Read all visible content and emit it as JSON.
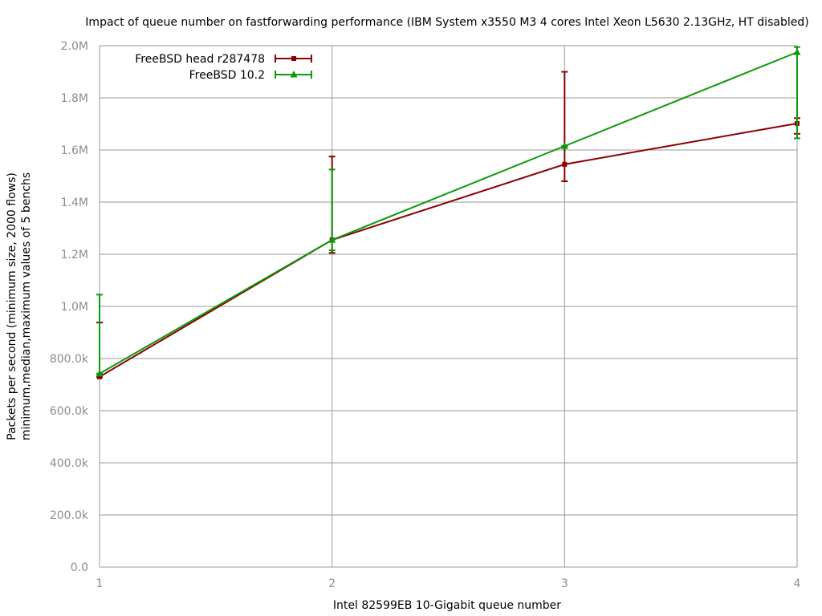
{
  "chart_data": {
    "type": "line",
    "title": "Impact of queue number on fastforwarding performance (IBM System x3550 M3 4 cores Intel Xeon L5630 2.13GHz, HT disabled)",
    "xlabel": "Intel 82599EB 10-Gigabit queue number",
    "ylabel": [
      "Packets per second (minimum size, 2000 flows)",
      "minimum,median,maximum values of 5 benchs"
    ],
    "x": [
      1,
      2,
      3,
      4
    ],
    "xlim": [
      1,
      4
    ],
    "ylim": [
      0,
      2000000
    ],
    "y_ticks": [
      0,
      200000,
      400000,
      600000,
      800000,
      1000000,
      1200000,
      1400000,
      1600000,
      1800000,
      2000000
    ],
    "y_tick_labels": [
      "0.0",
      "200.0k",
      "400.0k",
      "600.0k",
      "800.0k",
      "1.0M",
      "1.2M",
      "1.4M",
      "1.6M",
      "1.8M",
      "2.0M"
    ],
    "x_tick_labels": [
      "1",
      "2",
      "3",
      "4"
    ],
    "grid": true,
    "legend_position": "top-left",
    "series": [
      {
        "name": "FreeBSD head r287478",
        "color": "#8b0000",
        "marker": "square",
        "median": [
          730000,
          1255000,
          1545000,
          1702000
        ],
        "min": [
          728000,
          1205000,
          1480000,
          1662000
        ],
        "max": [
          938000,
          1575000,
          1900000,
          1722000
        ]
      },
      {
        "name": "FreeBSD 10.2",
        "color": "#0a9a0a",
        "marker": "triangle",
        "median": [
          742000,
          1255000,
          1615000,
          1975000
        ],
        "min": [
          742000,
          1215000,
          1615000,
          1645000
        ],
        "max": [
          1045000,
          1525000,
          1615000,
          1995000
        ]
      }
    ]
  }
}
